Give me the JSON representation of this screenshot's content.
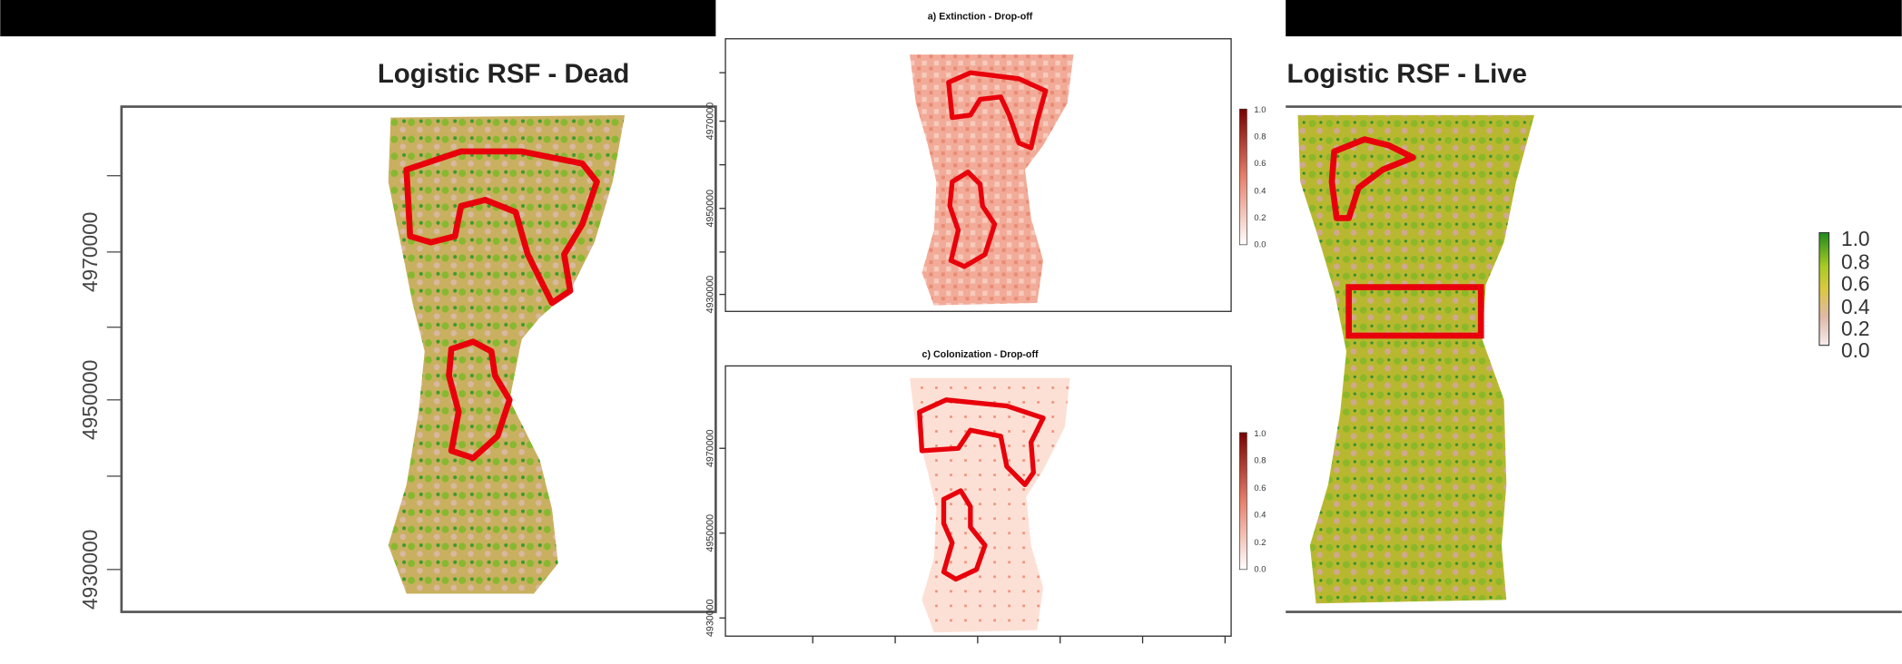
{
  "panels": [
    {
      "title": "Logistic RSF - Dead",
      "yticks": [
        "4970000",
        "4950000",
        "4930000"
      ]
    },
    {
      "title": "a) Extinction - Drop-off",
      "yticks": [
        "4970000",
        "4950000",
        "4930000"
      ],
      "colorbar": [
        "1.0",
        "0.8",
        "0.6",
        "0.4",
        "0.2",
        "0.0"
      ]
    },
    {
      "title": "c) Colonization - Drop-off",
      "yticks": [
        "4970000",
        "4950000",
        "4930000"
      ],
      "colorbar": [
        "1.0",
        "0.8",
        "0.6",
        "0.4",
        "0.2",
        "0.0"
      ]
    },
    {
      "title": "Logistic RSF - Live",
      "colorbar": [
        "1.0",
        "0.8",
        "0.6",
        "0.4",
        "0.2",
        "0.0"
      ]
    }
  ]
}
